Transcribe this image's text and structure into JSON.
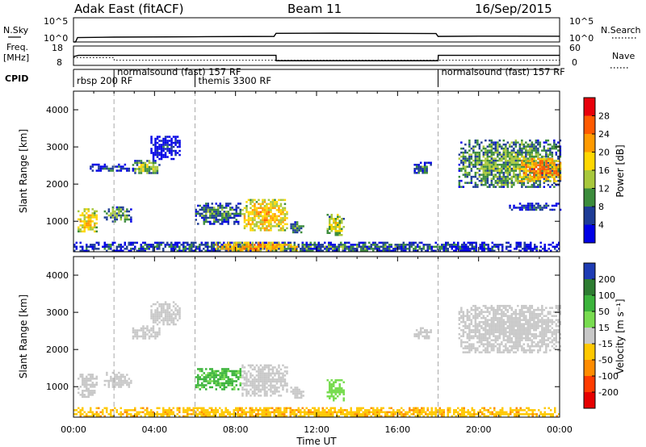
{
  "header": {
    "station": "Adak East (fitACF)",
    "beam": "Beam 11",
    "date": "16/Sep/2015"
  },
  "side_labels": {
    "nsky": "N.Sky",
    "freq_line1": "Freq.",
    "freq_line2": "[MHz]",
    "cpid": "CPID",
    "nsearch": "N.Search",
    "nave": "Nave"
  },
  "chart_data": [
    {
      "type": "line",
      "panel": "noise",
      "series": [
        {
          "name": "N.Sky",
          "x_hours": [
            0,
            0.1,
            0.2,
            2,
            6,
            9.9,
            10,
            13,
            17.9,
            18,
            20,
            24
          ],
          "y": [
            1,
            1,
            8,
            10,
            12,
            14,
            60,
            65,
            55,
            14,
            16,
            15
          ]
        },
        {
          "name": "N.Search",
          "x_hours": [
            0,
            24
          ],
          "y": [
            1,
            1
          ]
        }
      ],
      "y_tick_labels": [
        "10^5",
        "10^0"
      ],
      "right_tick_labels": [
        "10^5",
        "10^0"
      ],
      "ylim": [
        1,
        100000
      ],
      "yscale": "log"
    },
    {
      "type": "line",
      "panel": "frequency",
      "series": [
        {
          "name": "Freq.",
          "x_hours": [
            0,
            0.25,
            10,
            10.01,
            18,
            18.01,
            24
          ],
          "y": [
            12.5,
            13.2,
            13.2,
            10.4,
            10.4,
            13.2,
            13.2
          ]
        },
        {
          "name": "Nave",
          "x_hours": [
            0,
            2,
            2.01,
            24
          ],
          "y": [
            24,
            24,
            16,
            16
          ]
        }
      ],
      "y_tick_labels": [
        "18",
        "8"
      ],
      "right_tick_labels": [
        "60",
        "0"
      ]
    },
    {
      "type": "heatmap",
      "panel": "cpid",
      "segments": [
        {
          "label": "rbsp  200  RF",
          "start_hour": 0,
          "end_hour": 2
        },
        {
          "label": "normalsound  (fast)  157  RF",
          "start_hour": 2,
          "end_hour": 6
        },
        {
          "label": "themis  3300  RF",
          "start_hour": 6,
          "end_hour": 18
        },
        {
          "label": "normalsound  (fast)  157  RF",
          "start_hour": 18,
          "end_hour": 24
        }
      ]
    },
    {
      "type": "heatmap",
      "panel": "power",
      "ylabel": "Slant Range [km]",
      "colorbar_label": "Power [dB]",
      "colorbar_ticks": [
        "28",
        "24",
        "20",
        "16",
        "12",
        "8",
        "4"
      ],
      "colorbar_values": [
        28,
        24,
        20,
        16,
        12,
        8,
        4
      ],
      "colorbar_colors": [
        "#e8000b",
        "#ff5a00",
        "#ff9a00",
        "#ffd700",
        "#a8c83c",
        "#3c8c3c",
        "#1e3c96",
        "#0000e6"
      ],
      "xlim": [
        0,
        24
      ],
      "ylim": [
        180,
        4500
      ],
      "x_ticks": [
        "00:00",
        "04:00",
        "08:00",
        "12:00",
        "16:00",
        "20:00",
        "00:00"
      ],
      "y_ticks": [
        1000,
        2000,
        3000,
        4000
      ],
      "blobs": [
        {
          "t0": 0.2,
          "t1": 1.1,
          "r0": 700,
          "r1": 1350,
          "v": 20
        },
        {
          "t0": 1.5,
          "t1": 2.8,
          "r0": 1000,
          "r1": 1400,
          "v": 12
        },
        {
          "t0": 2.9,
          "t1": 4.2,
          "r0": 2300,
          "r1": 2650,
          "v": 14
        },
        {
          "t0": 0.8,
          "t1": 2.9,
          "r0": 2350,
          "r1": 2550,
          "v": 6
        },
        {
          "t0": 3.8,
          "t1": 5.2,
          "r0": 2700,
          "r1": 3300,
          "v": 4
        },
        {
          "t0": 6.0,
          "t1": 8.2,
          "r0": 950,
          "r1": 1500,
          "v": 10
        },
        {
          "t0": 8.3,
          "t1": 10.5,
          "r0": 750,
          "r1": 1600,
          "v": 20
        },
        {
          "t0": 10.7,
          "t1": 11.3,
          "r0": 700,
          "r1": 1000,
          "v": 10
        },
        {
          "t0": 12.5,
          "t1": 13.3,
          "r0": 650,
          "r1": 1200,
          "v": 16
        },
        {
          "t0": 16.8,
          "t1": 17.6,
          "r0": 2300,
          "r1": 2600,
          "v": 8
        },
        {
          "t0": 19.0,
          "t1": 24.0,
          "r0": 1900,
          "r1": 3200,
          "v": 12
        },
        {
          "t0": 22.0,
          "t1": 24.0,
          "r0": 2100,
          "r1": 2700,
          "v": 24
        },
        {
          "t0": 21.5,
          "t1": 24.0,
          "r0": 1300,
          "r1": 1500,
          "v": 6
        },
        {
          "t0": 0.0,
          "t1": 24.0,
          "r0": 200,
          "r1": 450,
          "v": 8
        },
        {
          "t0": 7.0,
          "t1": 11.0,
          "r0": 220,
          "r1": 450,
          "v": 22
        }
      ]
    },
    {
      "type": "heatmap",
      "panel": "velocity",
      "ylabel": "Slant Range [km]",
      "xlabel": "Time UT",
      "colorbar_label": "Velocity [m s⁻¹]",
      "colorbar_ticks": [
        "200",
        "100",
        "50",
        "15",
        "-15",
        "-50",
        "-100",
        "-200"
      ],
      "colorbar_values": [
        200,
        100,
        50,
        15,
        -15,
        -50,
        -100,
        -200
      ],
      "colorbar_colors": [
        "#1e3cb4",
        "#2e7d32",
        "#3cb43c",
        "#78dc50",
        "#c8c8c8",
        "#ffc800",
        "#ff8c00",
        "#ff3c00",
        "#e60000"
      ],
      "xlim": [
        0,
        24
      ],
      "ylim": [
        180,
        4500
      ],
      "x_ticks": [
        "00:00",
        "04:00",
        "08:00",
        "12:00",
        "16:00",
        "20:00",
        "00:00"
      ],
      "y_ticks": [
        1000,
        2000,
        3000,
        4000
      ],
      "blobs": [
        {
          "t0": 0.2,
          "t1": 1.1,
          "r0": 700,
          "r1": 1350,
          "v": 0
        },
        {
          "t0": 1.5,
          "t1": 2.8,
          "r0": 1000,
          "r1": 1400,
          "v": 0
        },
        {
          "t0": 2.9,
          "t1": 4.2,
          "r0": 2300,
          "r1": 2650,
          "v": 0
        },
        {
          "t0": 3.8,
          "t1": 5.2,
          "r0": 2700,
          "r1": 3300,
          "v": 0
        },
        {
          "t0": 6.0,
          "t1": 8.2,
          "r0": 950,
          "r1": 1500,
          "v": 60
        },
        {
          "t0": 8.3,
          "t1": 10.5,
          "r0": 750,
          "r1": 1600,
          "v": 0
        },
        {
          "t0": 10.7,
          "t1": 11.3,
          "r0": 700,
          "r1": 1000,
          "v": 0
        },
        {
          "t0": 12.5,
          "t1": 13.3,
          "r0": 650,
          "r1": 1200,
          "v": 30
        },
        {
          "t0": 16.8,
          "t1": 17.6,
          "r0": 2300,
          "r1": 2600,
          "v": 0
        },
        {
          "t0": 19.0,
          "t1": 24.0,
          "r0": 1900,
          "r1": 3200,
          "v": 0
        },
        {
          "t0": 0.0,
          "t1": 24.0,
          "r0": 200,
          "r1": 450,
          "v": -40
        }
      ]
    }
  ],
  "axis": {
    "y_tick_labels": [
      "1000",
      "2000",
      "3000",
      "4000"
    ],
    "x_tick_labels": [
      "00:00",
      "04:00",
      "08:00",
      "12:00",
      "16:00",
      "20:00",
      "00:00"
    ],
    "ylabel": "Slant Range [km]",
    "xlabel": "Time UT"
  },
  "colorbars": {
    "power_label": "Power [dB]",
    "power_ticks": [
      "28",
      "24",
      "20",
      "16",
      "12",
      "8",
      "4"
    ],
    "velocity_label": "Velocity [m s⁻¹]",
    "velocity_ticks": [
      "200",
      "100",
      "50",
      "15",
      "-15",
      "-50",
      "-100",
      "-200"
    ]
  },
  "top_ticks": {
    "noise_left": [
      "10^5",
      "10^0"
    ],
    "noise_right": [
      "10^5",
      "10^0"
    ],
    "freq_left": [
      "18",
      "8"
    ],
    "freq_right": [
      "60",
      "0"
    ]
  }
}
